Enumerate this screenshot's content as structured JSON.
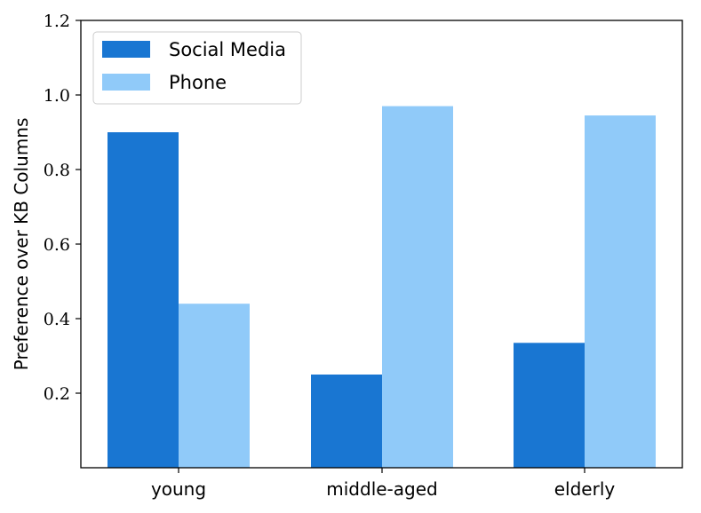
{
  "chart_data": {
    "type": "bar",
    "title": "",
    "xlabel": "",
    "ylabel": "Preference over KB Columns",
    "categories": [
      "young",
      "middle-aged",
      "elderly"
    ],
    "series": [
      {
        "name": "Social Media",
        "values": [
          0.9,
          0.25,
          0.335
        ],
        "color": "#1976d2"
      },
      {
        "name": "Phone",
        "values": [
          0.44,
          0.97,
          0.945
        ],
        "color": "#90caf9"
      }
    ],
    "ylim": [
      0,
      1.2
    ],
    "yticks": [
      0.2,
      0.4,
      0.6,
      0.8,
      1.0,
      1.2
    ],
    "ytick_labels": [
      "0.2",
      "0.4",
      "0.6",
      "0.8",
      "1.0",
      "1.2"
    ],
    "grid": false,
    "legend_position": "top-left"
  }
}
